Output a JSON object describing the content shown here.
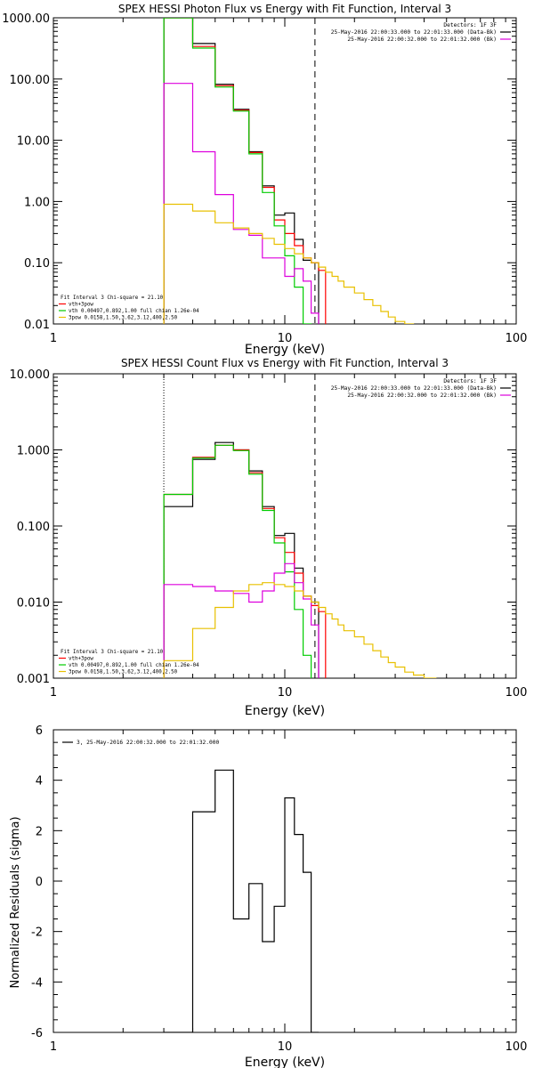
{
  "chart_data": [
    {
      "type": "line",
      "title": "SPEX HESSI Photon Flux vs Energy with Fit Function, Interval 3",
      "xlabel": "Energy (keV)",
      "ylabel": "",
      "xscale": "log",
      "yscale": "log",
      "xlim": [
        1,
        100
      ],
      "ylim": [
        0.01,
        1000
      ],
      "xticks": [
        "1",
        "10",
        "100"
      ],
      "yticks": [
        "0.01",
        "0.10",
        "1.00",
        "10.00",
        "100.00",
        "1000.00"
      ],
      "ytick_values": [
        0.01,
        0.1,
        1,
        10,
        100,
        1000
      ],
      "vlines": [
        {
          "x": 3,
          "style": "dotted",
          "color": "#d98000"
        },
        {
          "x": 13.5,
          "style": "dashed",
          "color": "#000000"
        }
      ],
      "legend_tr": [
        {
          "text": "Detectors: 1F 3F",
          "color": ""
        },
        {
          "text": "25-May-2016 22:00:33.000 to 22:01:33.000 (Data-Bk)",
          "color": "#000000"
        },
        {
          "text": "25-May-2016 22:00:32.000 to 22:01:32.000 (Bk)",
          "color": "#dd00dd"
        }
      ],
      "legend_bl": [
        {
          "text": "Fit Interval 3   Chi-square = 21.10",
          "color": ""
        },
        {
          "text": "vth+3pow",
          "color": "#ff0000"
        },
        {
          "text": "vth 0.00497,0.892,1.00  full chian 1.26e-04",
          "color": "#00cc00"
        },
        {
          "text": "3pow 0.0158,1.50,3.62,3.12,400,2.50",
          "color": "#e8c000"
        }
      ],
      "series": [
        {
          "name": "Data-Bk",
          "color": "#000000",
          "edges": [
            3,
            4,
            5,
            6,
            7,
            8,
            9,
            10,
            11,
            12,
            13,
            14
          ],
          "values": [
            1000,
            380,
            82,
            32,
            6.5,
            1.8,
            0.6,
            0.65,
            0.24,
            0.11,
            0.1
          ]
        },
        {
          "name": "vth+3pow",
          "color": "#ff0000",
          "edges": [
            3,
            4,
            5,
            6,
            7,
            8,
            9,
            10,
            11,
            12,
            13,
            14,
            15
          ],
          "values": [
            1000,
            340,
            78,
            31,
            6.3,
            1.7,
            0.5,
            0.3,
            0.19,
            0.12,
            0.1,
            0.075
          ]
        },
        {
          "name": "vth",
          "color": "#00cc00",
          "edges": [
            3,
            4,
            5,
            6,
            7,
            8,
            9,
            10,
            11,
            12,
            13
          ],
          "values": [
            1000,
            320,
            74,
            30,
            6,
            1.4,
            0.4,
            0.13,
            0.04,
            0.01
          ]
        },
        {
          "name": "Bk",
          "color": "#dd00dd",
          "edges": [
            3,
            4,
            5,
            6,
            7,
            8,
            9,
            10,
            11,
            12,
            13,
            14
          ],
          "values": [
            85,
            6.5,
            1.3,
            0.35,
            0.28,
            0.12,
            0.12,
            0.06,
            0.08,
            0.05,
            0.015
          ]
        },
        {
          "name": "3pow",
          "color": "#e8c000",
          "edges": [
            3,
            4,
            5,
            6,
            7,
            8,
            9,
            10,
            11,
            12,
            13,
            14,
            15,
            16,
            17,
            18,
            20,
            22,
            24,
            26,
            28,
            30,
            33,
            36,
            40
          ],
          "values": [
            0.9,
            0.7,
            0.45,
            0.37,
            0.3,
            0.25,
            0.2,
            0.17,
            0.14,
            0.12,
            0.1,
            0.085,
            0.07,
            0.06,
            0.05,
            0.04,
            0.032,
            0.025,
            0.02,
            0.016,
            0.013,
            0.011,
            0.01,
            0.009
          ]
        }
      ]
    },
    {
      "type": "line",
      "title": "SPEX HESSI Count Flux vs Energy with Fit Function, Interval 3",
      "xlabel": "Energy (keV)",
      "ylabel": "",
      "xscale": "log",
      "yscale": "log",
      "xlim": [
        1,
        100
      ],
      "ylim": [
        0.001,
        10
      ],
      "xticks": [
        "1",
        "10",
        "100"
      ],
      "yticks": [
        "0.001",
        "0.010",
        "0.100",
        "1.000",
        "10.000"
      ],
      "ytick_values": [
        0.001,
        0.01,
        0.1,
        1,
        10
      ],
      "vlines": [
        {
          "x": 3,
          "style": "dotted",
          "color": "#000000"
        },
        {
          "x": 13.5,
          "style": "dashed",
          "color": "#000000"
        }
      ],
      "legend_tr": [
        {
          "text": "Detectors: 1F 3F",
          "color": ""
        },
        {
          "text": "25-May-2016 22:00:33.000 to 22:01:33.000 (Data-Bk)",
          "color": "#000000"
        },
        {
          "text": "25-May-2016 22:00:32.000 to 22:01:32.000 (Bk)",
          "color": "#dd00dd"
        }
      ],
      "legend_bl": [
        {
          "text": "Fit Interval 3   Chi-square = 21.10",
          "color": ""
        },
        {
          "text": "vth+3pow",
          "color": "#ff0000"
        },
        {
          "text": "vth 0.00497,0.892,1.00  full chian 1.26e-04",
          "color": "#00cc00"
        },
        {
          "text": "3pow 0.0158,1.50,3.62,3.12,400,2.50",
          "color": "#e8c000"
        }
      ],
      "series": [
        {
          "name": "Data-Bk",
          "color": "#000000",
          "edges": [
            3,
            4,
            5,
            6,
            7,
            8,
            9,
            10,
            11,
            12,
            13,
            14
          ],
          "values": [
            0.18,
            0.75,
            1.25,
            1.0,
            0.53,
            0.18,
            0.075,
            0.08,
            0.028,
            0.012,
            0.01
          ]
        },
        {
          "name": "vth+3pow",
          "color": "#ff0000",
          "edges": [
            3,
            4,
            5,
            6,
            7,
            8,
            9,
            10,
            11,
            12,
            13,
            14,
            15
          ],
          "values": [
            0.26,
            0.8,
            1.15,
            1.0,
            0.5,
            0.17,
            0.07,
            0.045,
            0.024,
            0.012,
            0.009,
            0.0075
          ]
        },
        {
          "name": "vth",
          "color": "#00cc00",
          "edges": [
            3,
            4,
            5,
            6,
            7,
            8,
            9,
            10,
            11,
            12,
            13
          ],
          "values": [
            0.26,
            0.78,
            1.15,
            0.98,
            0.48,
            0.16,
            0.06,
            0.025,
            0.008,
            0.002
          ]
        },
        {
          "name": "Bk",
          "color": "#dd00dd",
          "edges": [
            3,
            4,
            5,
            6,
            7,
            8,
            9,
            10,
            11,
            12,
            13,
            14
          ],
          "values": [
            0.017,
            0.016,
            0.014,
            0.013,
            0.01,
            0.014,
            0.024,
            0.032,
            0.018,
            0.011,
            0.005
          ]
        },
        {
          "name": "3pow",
          "color": "#e8c000",
          "edges": [
            3,
            4,
            5,
            6,
            7,
            8,
            9,
            10,
            11,
            12,
            13,
            14,
            15,
            16,
            17,
            18,
            20,
            22,
            24,
            26,
            28,
            30,
            33,
            36,
            40,
            45,
            50
          ],
          "values": [
            0.0017,
            0.0045,
            0.0085,
            0.014,
            0.017,
            0.018,
            0.017,
            0.016,
            0.014,
            0.012,
            0.01,
            0.0085,
            0.007,
            0.006,
            0.005,
            0.0042,
            0.0035,
            0.0028,
            0.0023,
            0.0019,
            0.0016,
            0.0014,
            0.0012,
            0.0011,
            0.001,
            0.0009
          ]
        }
      ]
    },
    {
      "type": "line",
      "title": "",
      "xlabel": "Energy (keV)",
      "ylabel": "Normalized Residuals (sigma)",
      "xscale": "log",
      "yscale": "linear",
      "xlim": [
        1,
        100
      ],
      "ylim": [
        -6,
        6
      ],
      "xticks": [
        "1",
        "10",
        "100"
      ],
      "yticks": [
        "-6",
        "-4",
        "-2",
        "0",
        "2",
        "4",
        "6"
      ],
      "ytick_values": [
        -6,
        -4,
        -2,
        0,
        2,
        4,
        6
      ],
      "vlines": [],
      "legend_tl": [
        {
          "text": "3, 25-May-2016 22:00:32.000 to 22:01:32.000",
          "color": "#000000"
        }
      ],
      "series": [
        {
          "name": "3, 25-May-2016 22:00:32.000 to 22:01:32.000",
          "color": "#000000",
          "edges": [
            3,
            4,
            5,
            6,
            7,
            8,
            9,
            10,
            11,
            12,
            13,
            14
          ],
          "values": [
            -6,
            2.75,
            4.4,
            -1.5,
            -0.1,
            -2.4,
            -1.0,
            3.3,
            1.85,
            0.35,
            -6
          ]
        }
      ]
    }
  ]
}
